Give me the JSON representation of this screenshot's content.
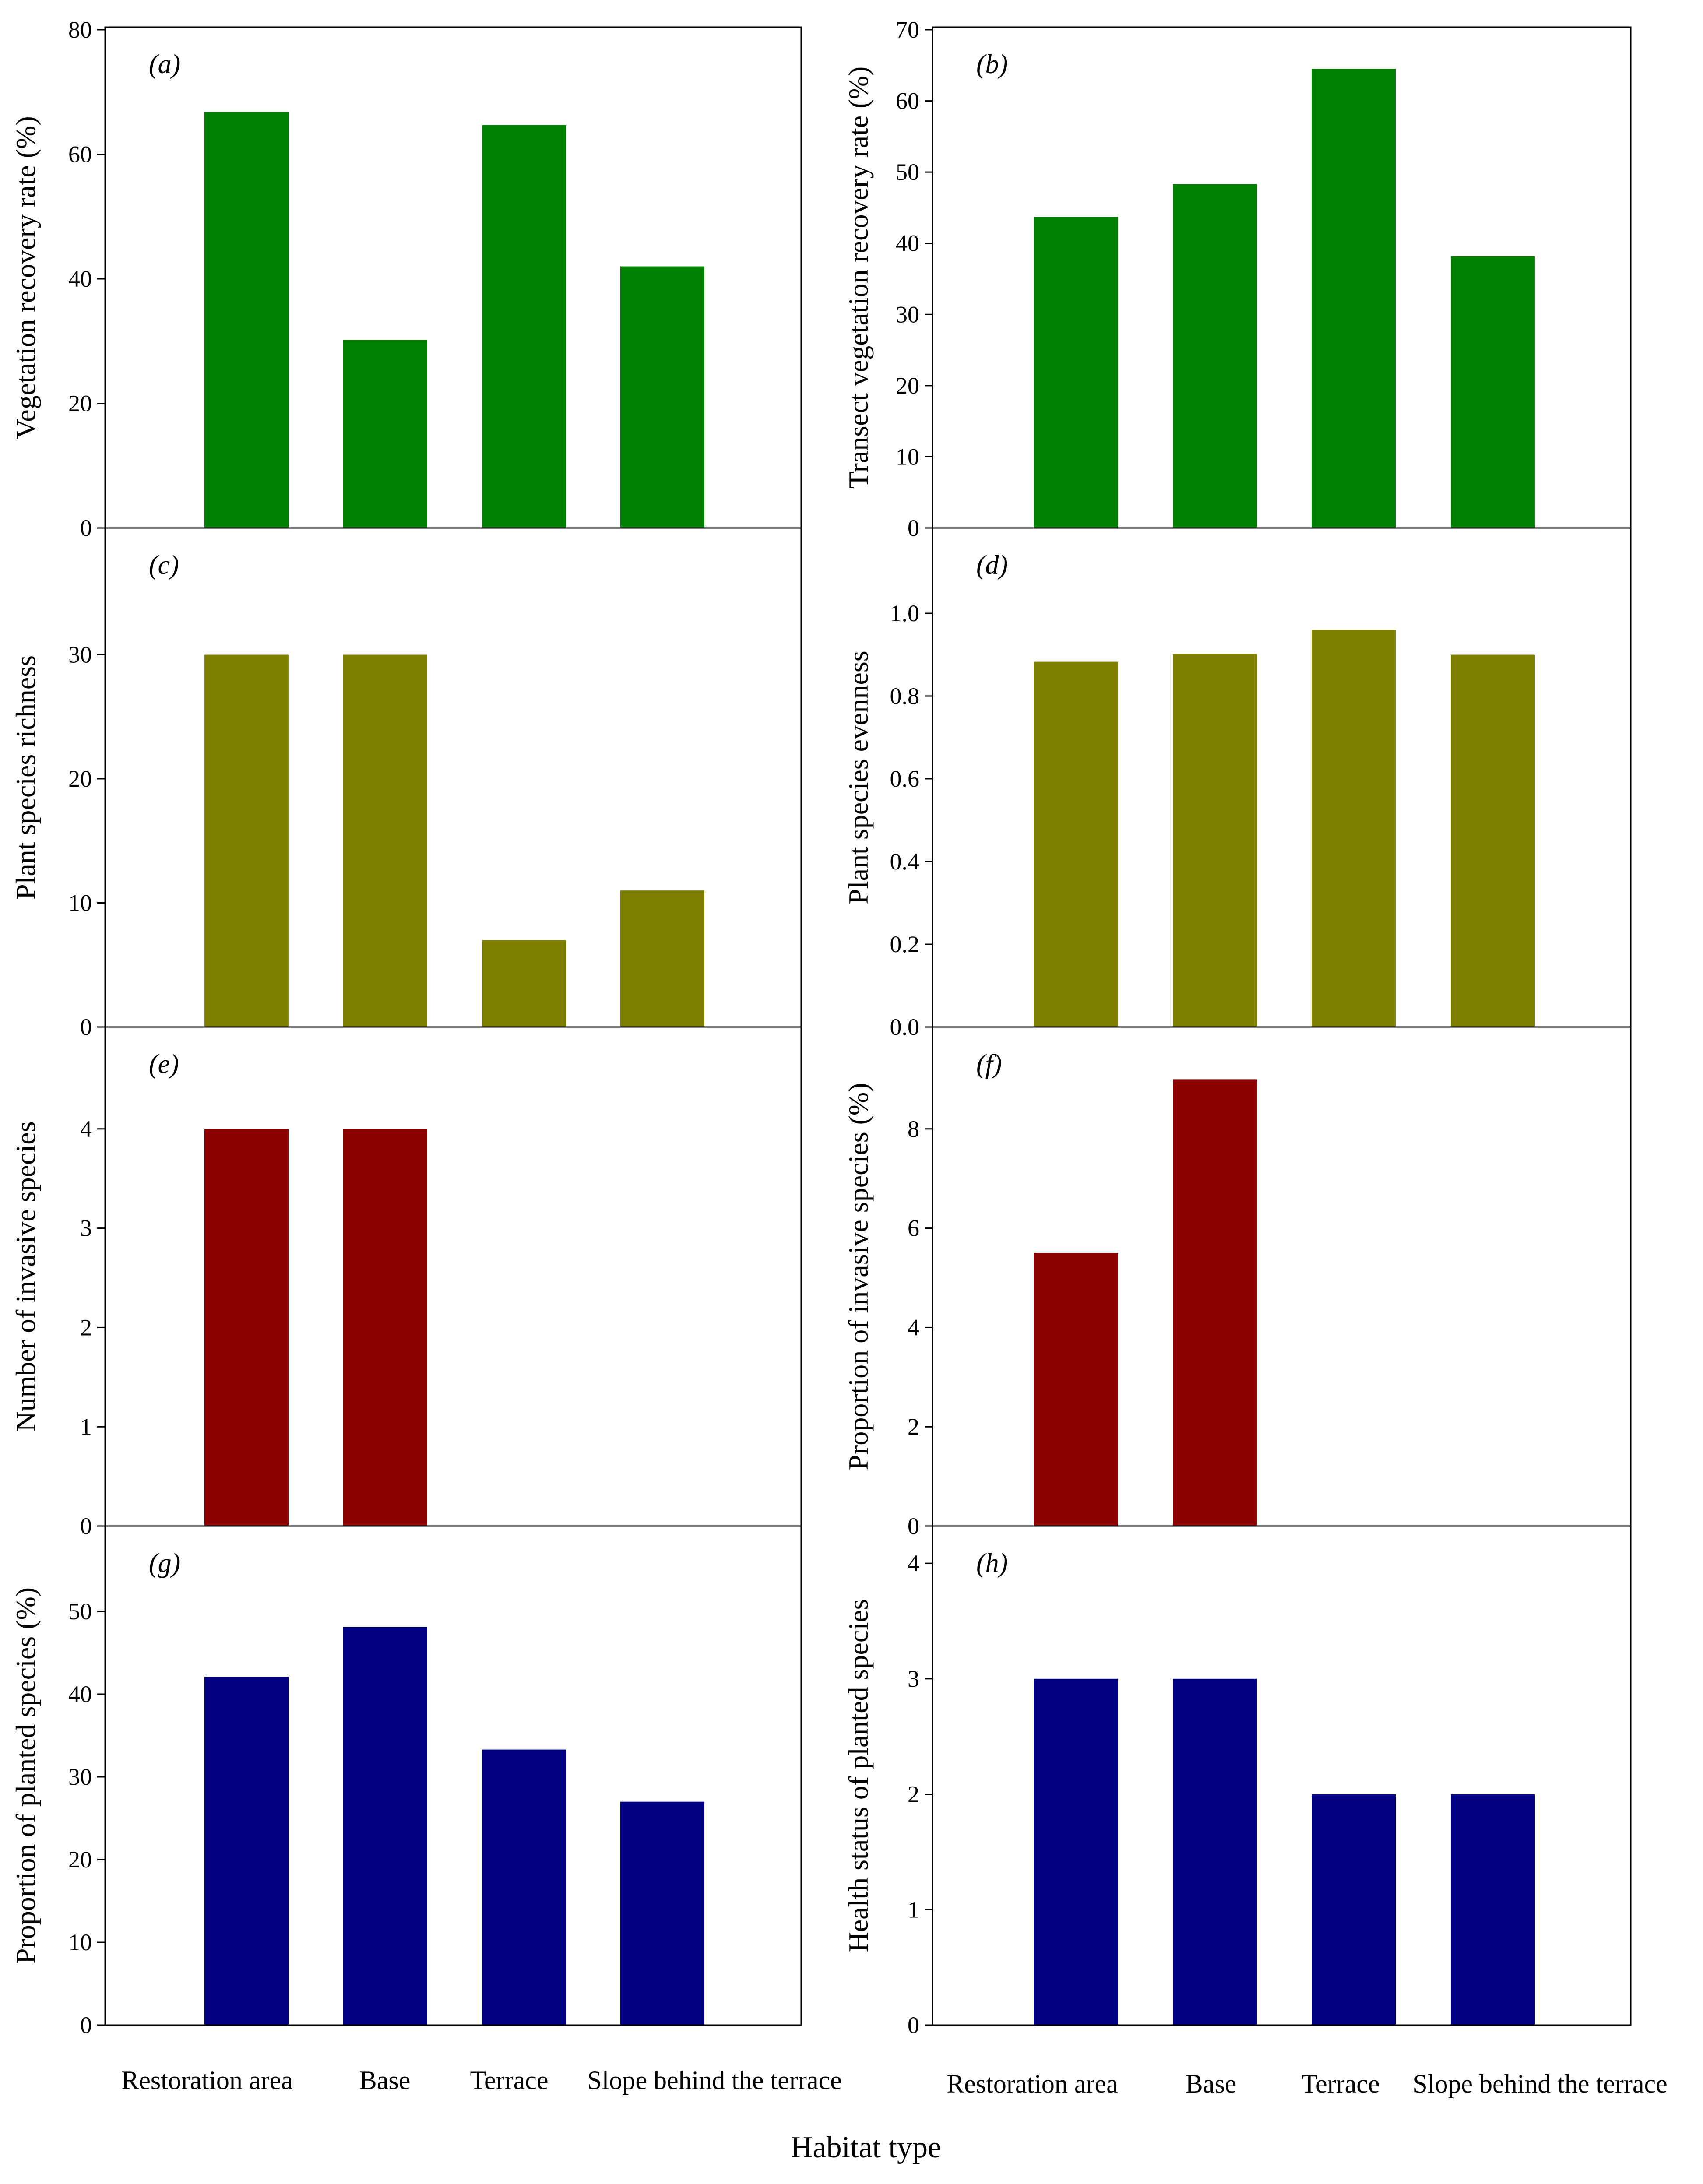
{
  "figure": {
    "xlabel": "Habitat type",
    "categories": [
      "Restoration area",
      "Base",
      "Terrace",
      "Slope behind the terrace"
    ]
  },
  "chart_data": [
    {
      "panel": "(a)",
      "type": "bar",
      "categories": [
        "Restoration area",
        "Base",
        "Terrace",
        "Slope behind the terrace"
      ],
      "values": [
        66.8,
        30.2,
        64.7,
        42.0
      ],
      "ylabel": "Vegetation recovery rate (%)",
      "ylim": [
        0,
        80
      ],
      "yticks": [
        0,
        20,
        40,
        60,
        80
      ],
      "color": "#008000"
    },
    {
      "panel": "(b)",
      "type": "bar",
      "categories": [
        "Restoration area",
        "Base",
        "Terrace",
        "Slope behind the terrace"
      ],
      "values": [
        43.7,
        48.3,
        64.5,
        38.2
      ],
      "ylabel": "Transect vegetation recovery rate (%)",
      "ylim": [
        0,
        70
      ],
      "yticks": [
        0,
        10,
        20,
        30,
        40,
        50,
        60,
        70
      ],
      "color": "#008000"
    },
    {
      "panel": "(c)",
      "type": "bar",
      "categories": [
        "Restoration area",
        "Base",
        "Terrace",
        "Slope behind the terrace"
      ],
      "values": [
        30,
        30,
        7,
        11
      ],
      "ylabel": "Plant species richness",
      "ylim": [
        0,
        40
      ],
      "yticks": [
        0,
        10,
        20,
        30
      ],
      "color": "#808000"
    },
    {
      "panel": "(d)",
      "type": "bar",
      "categories": [
        "Restoration area",
        "Base",
        "Terrace",
        "Slope behind the terrace"
      ],
      "values": [
        0.883,
        0.902,
        0.96,
        0.9
      ],
      "ylabel": "Plant species evenness",
      "ylim": [
        0,
        1.2
      ],
      "yticks": [
        0.0,
        0.2,
        0.4,
        0.6,
        0.8,
        1.0
      ],
      "tick_decimals": 1,
      "color": "#808000"
    },
    {
      "panel": "(e)",
      "type": "bar",
      "categories": [
        "Restoration area",
        "Base",
        "Terrace",
        "Slope behind the terrace"
      ],
      "values": [
        4,
        4,
        0,
        0
      ],
      "ylabel": "Number of invasive species",
      "ylim": [
        0,
        5
      ],
      "yticks": [
        0,
        1,
        2,
        3,
        4
      ],
      "color": "#8b0000"
    },
    {
      "panel": "(f)",
      "type": "bar",
      "categories": [
        "Restoration area",
        "Base",
        "Terrace",
        "Slope behind the terrace"
      ],
      "values": [
        5.5,
        9.0,
        0,
        0
      ],
      "ylabel": "Proportion of invasive species (%)",
      "ylim": [
        0,
        10
      ],
      "yticks": [
        0,
        2,
        4,
        6,
        8
      ],
      "color": "#8b0000"
    },
    {
      "panel": "(g)",
      "type": "bar",
      "categories": [
        "Restoration area",
        "Base",
        "Terrace",
        "Slope behind the terrace"
      ],
      "values": [
        42.1,
        48.1,
        33.3,
        27.0
      ],
      "ylabel": "Proportion of planted species (%)",
      "ylim": [
        0,
        60
      ],
      "yticks": [
        0,
        10,
        20,
        30,
        40,
        50
      ],
      "color": "#000080"
    },
    {
      "panel": "(h)",
      "type": "bar",
      "categories": [
        "Restoration area",
        "Base",
        "Terrace",
        "Slope behind the terrace"
      ],
      "values": [
        3,
        3,
        2,
        2
      ],
      "ylabel": "Health status of planted species",
      "ylim": [
        0,
        4.3
      ],
      "yticks": [
        0,
        1,
        2,
        3,
        4
      ],
      "color": "#000080"
    }
  ]
}
